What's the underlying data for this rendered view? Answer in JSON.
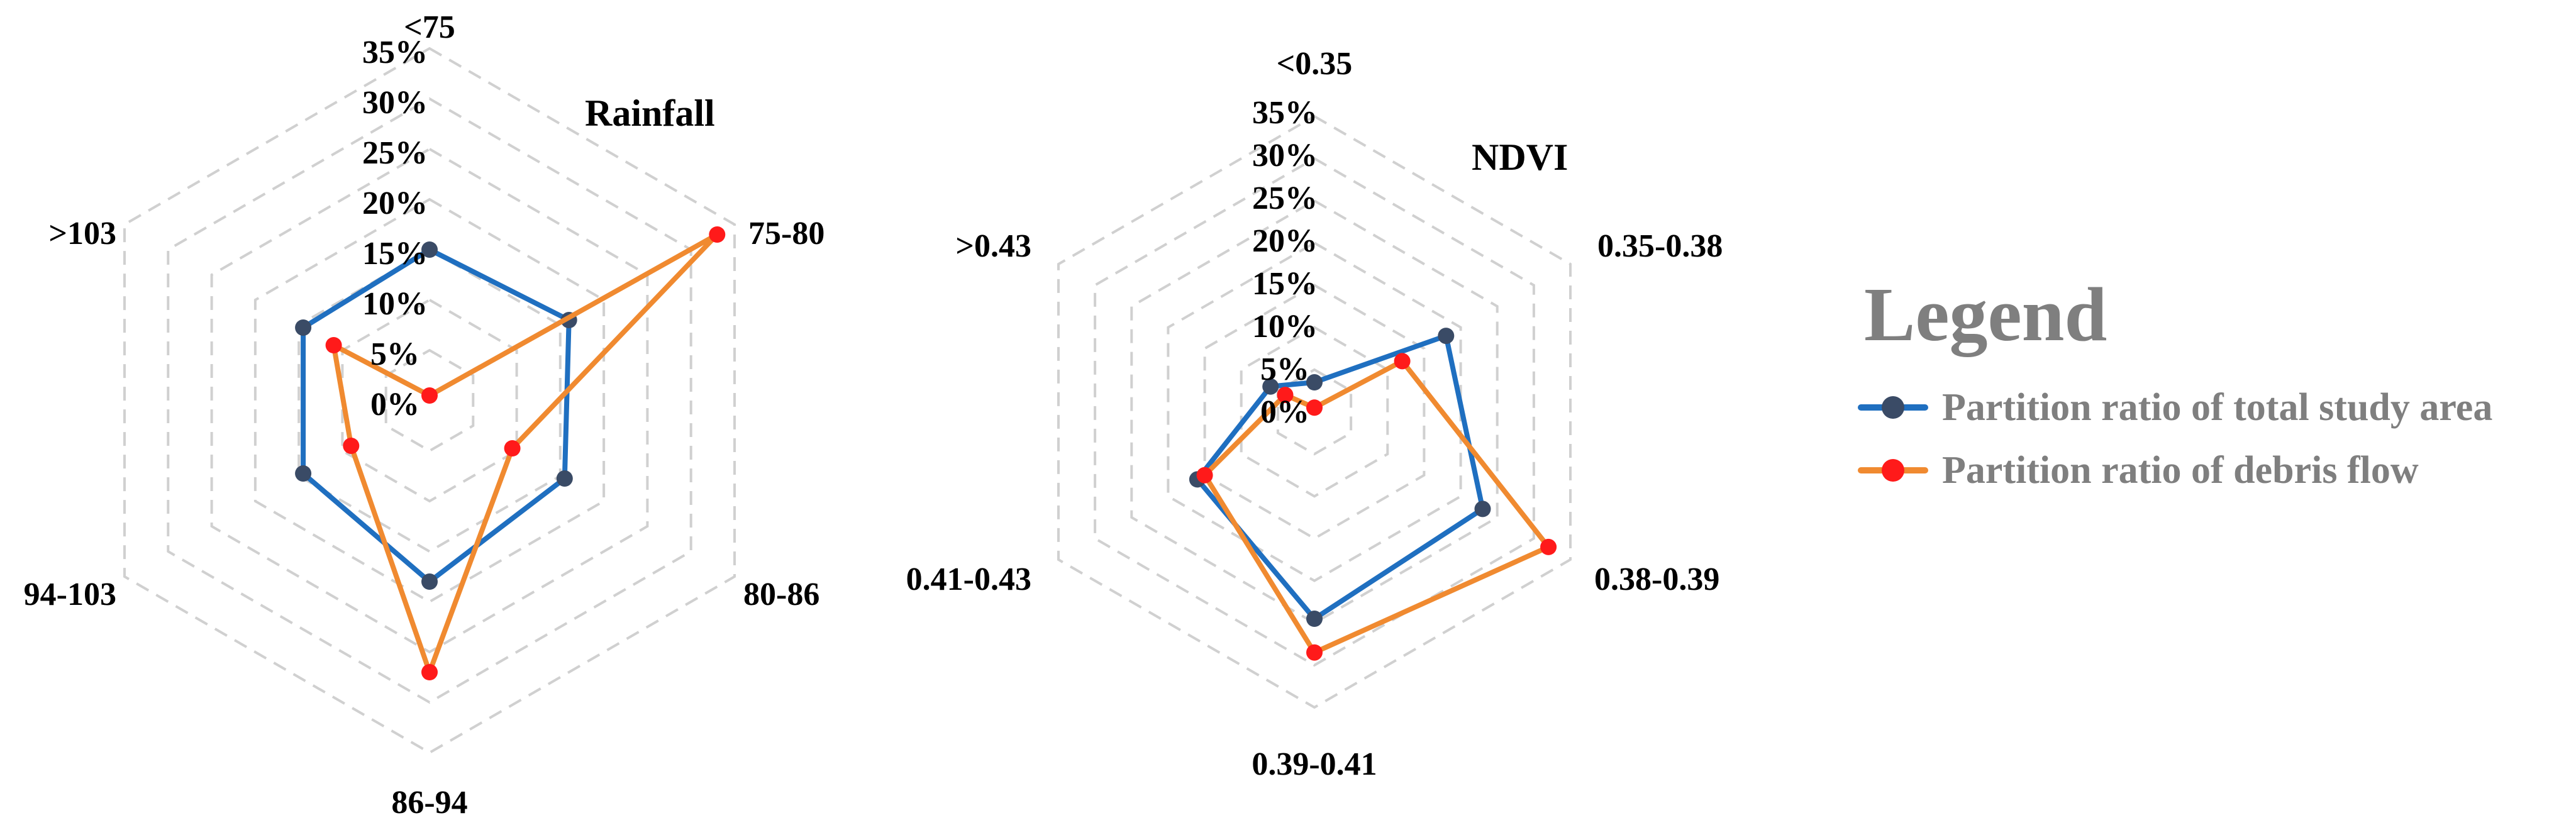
{
  "colors": {
    "total_line": "#1f6fc0",
    "total_marker": "#3a4b66",
    "debris_line": "#f08a30",
    "debris_marker": "#ff1a1a",
    "grid": "#d0d0d0",
    "legend_text": "#7f7f7f"
  },
  "legend": {
    "title": "Legend",
    "entries": [
      {
        "label": "Partition ratio of total study area",
        "series": "total"
      },
      {
        "label": "Partition ratio of debris flow",
        "series": "debris"
      }
    ]
  },
  "chart_data": [
    {
      "type": "radar",
      "title": "Rainfall",
      "categories": [
        "<75",
        "75-80",
        "80-86",
        "86-94",
        "94-103",
        ">103"
      ],
      "rlim": [
        0,
        35
      ],
      "ticks": [
        "0%",
        "5%",
        "10%",
        "15%",
        "20%",
        "25%",
        "30%",
        "35%"
      ],
      "grid": true,
      "series": [
        {
          "name": "Partition ratio of total study area",
          "key": "total",
          "values": [
            15,
            16,
            15.5,
            18,
            14.5,
            14.5
          ]
        },
        {
          "name": "Partition ratio of debris flow",
          "key": "debris",
          "values": [
            0.5,
            33,
            9.5,
            27,
            9,
            11
          ]
        }
      ]
    },
    {
      "type": "radar",
      "title": "NDVI",
      "categories": [
        "<0.35",
        "0.35-0.38",
        "0.38-0.39",
        "0.39-0.41",
        "0.41-0.43",
        ">0.43"
      ],
      "rlim": [
        0,
        35
      ],
      "ticks": [
        "0%",
        "5%",
        "10%",
        "15%",
        "20%",
        "25%",
        "30%",
        "35%"
      ],
      "grid": true,
      "series": [
        {
          "name": "Partition ratio of total study area",
          "key": "total",
          "values": [
            3.5,
            18,
            23,
            24.5,
            16,
            6
          ]
        },
        {
          "name": "Partition ratio of debris flow",
          "key": "debris",
          "values": [
            0.5,
            12,
            32,
            28.5,
            15,
            4
          ]
        }
      ]
    }
  ]
}
